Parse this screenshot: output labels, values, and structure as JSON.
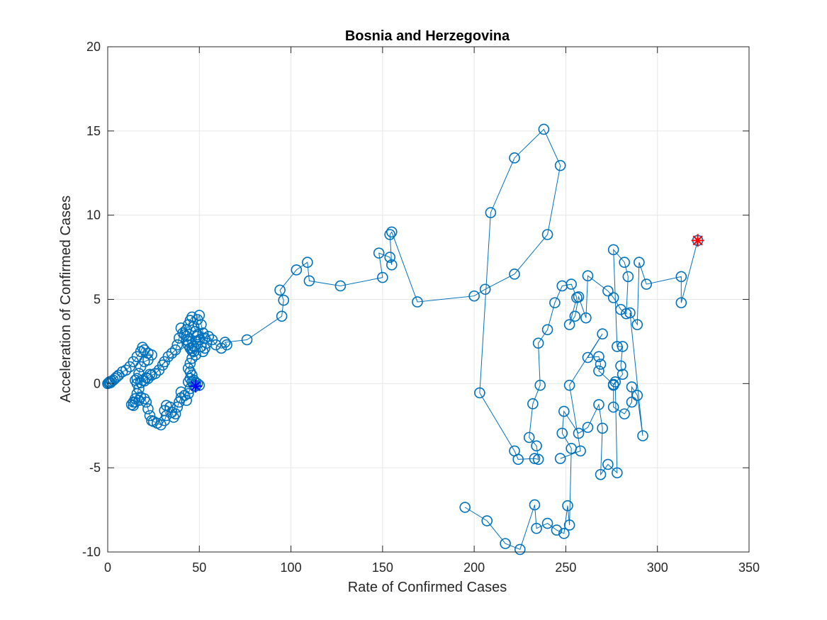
{
  "chart_data": {
    "type": "line",
    "title": "Bosnia and Herzegovina",
    "xlabel": "Rate of Confirmed Cases",
    "ylabel": "Acceleration of Confirmed Cases",
    "xlim": [
      0,
      350
    ],
    "ylim": [
      -10,
      20
    ],
    "xticks": [
      0,
      50,
      100,
      150,
      200,
      250,
      300,
      350
    ],
    "yticks": [
      -10,
      -5,
      0,
      5,
      10,
      15,
      20
    ],
    "grid": true,
    "colors": {
      "series": "#0072BD",
      "start_marker": "#0000FF",
      "end_marker": "#FF0000",
      "grid": "#E6E6E6",
      "axis": "#262626"
    },
    "series": [
      {
        "marker": "circle",
        "points": [
          [
            0,
            0
          ],
          [
            0.5,
            0.05
          ],
          [
            1,
            0.1
          ],
          [
            1.5,
            0.05
          ],
          [
            2,
            0.15
          ],
          [
            3,
            0.2
          ],
          [
            4,
            0.3
          ],
          [
            5,
            0.4
          ],
          [
            6,
            0.5
          ],
          [
            8,
            0.7
          ],
          [
            10,
            0.8
          ],
          [
            12,
            1.0
          ],
          [
            14,
            1.3
          ],
          [
            16,
            1.6
          ],
          [
            18,
            1.9
          ],
          [
            19,
            2.15
          ],
          [
            20,
            2.0
          ],
          [
            22,
            1.8
          ],
          [
            24,
            1.7
          ],
          [
            22,
            1.4
          ],
          [
            20,
            1.3
          ],
          [
            18,
            1.0
          ],
          [
            17,
            0.6
          ],
          [
            16,
            0.3
          ],
          [
            15,
            0.2
          ],
          [
            16,
            0.0
          ],
          [
            17,
            -0.3
          ],
          [
            16,
            -0.6
          ],
          [
            15,
            -0.9
          ],
          [
            14,
            -1.1
          ],
          [
            13,
            -1.25
          ],
          [
            14,
            -1.3
          ],
          [
            15,
            -1.1
          ],
          [
            17,
            -1.0
          ],
          [
            18,
            -0.8
          ],
          [
            20,
            -0.9
          ],
          [
            21,
            -1.1
          ],
          [
            22,
            -1.5
          ],
          [
            23,
            -1.9
          ],
          [
            24,
            -2.2
          ],
          [
            25,
            -2.25
          ],
          [
            27,
            -2.35
          ],
          [
            29,
            -2.45
          ],
          [
            31,
            -2.2
          ],
          [
            32,
            -1.9
          ],
          [
            31,
            -1.6
          ],
          [
            32,
            -1.3
          ],
          [
            34,
            -1.4
          ],
          [
            35,
            -1.7
          ],
          [
            36,
            -2.0
          ],
          [
            37,
            -1.8
          ],
          [
            38,
            -1.4
          ],
          [
            39,
            -1.1
          ],
          [
            40,
            -0.85
          ],
          [
            40,
            -0.5
          ],
          [
            42,
            -0.7
          ],
          [
            43,
            -1.0
          ],
          [
            44,
            -0.6
          ],
          [
            45,
            -0.3
          ],
          [
            44,
            0.1
          ],
          [
            45,
            0.3
          ],
          [
            46,
            0.1
          ],
          [
            47,
            -0.1
          ],
          [
            48,
            0.05
          ],
          [
            50,
            -0.1
          ],
          [
            49,
            0.0
          ],
          [
            48,
            -0.15
          ],
          [
            47,
            0.2
          ],
          [
            46,
            0.5
          ],
          [
            45,
            0.7
          ],
          [
            44,
            0.9
          ],
          [
            45,
            1.2
          ],
          [
            46,
            1.5
          ],
          [
            48,
            1.7
          ],
          [
            47,
            1.9
          ],
          [
            46,
            2.1
          ],
          [
            44,
            2.3
          ],
          [
            43,
            2.6
          ],
          [
            42,
            2.9
          ],
          [
            43,
            3.2
          ],
          [
            44,
            3.5
          ],
          [
            45,
            3.75
          ],
          [
            46,
            3.95
          ],
          [
            47,
            3.4
          ],
          [
            48,
            3.1
          ],
          [
            49,
            3.8
          ],
          [
            50,
            4.05
          ],
          [
            51,
            3.5
          ],
          [
            52,
            3.0
          ],
          [
            53,
            2.7
          ],
          [
            54,
            2.4
          ],
          [
            53,
            2.1
          ],
          [
            52,
            1.9
          ],
          [
            51,
            2.2
          ],
          [
            50,
            2.6
          ],
          [
            49,
            2.9
          ],
          [
            48,
            2.5
          ],
          [
            47,
            2.2
          ],
          [
            46,
            1.95
          ],
          [
            45,
            2.1
          ],
          [
            44,
            2.5
          ],
          [
            43,
            2.8
          ],
          [
            41,
            3.0
          ],
          [
            40,
            3.3
          ],
          [
            39,
            2.7
          ],
          [
            38,
            2.3
          ],
          [
            37,
            2.0
          ],
          [
            35,
            1.8
          ],
          [
            33,
            1.6
          ],
          [
            31,
            1.3
          ],
          [
            30,
            1.1
          ],
          [
            28,
            0.8
          ],
          [
            26,
            0.6
          ],
          [
            24,
            0.5
          ],
          [
            22,
            0.3
          ],
          [
            20,
            0.15
          ],
          [
            18,
            0.05
          ],
          [
            19,
            0.2
          ],
          [
            21,
            0.35
          ],
          [
            23,
            0.55
          ],
          [
            49,
            2.8
          ],
          [
            52,
            3.0
          ],
          [
            55,
            2.8
          ],
          [
            57,
            2.6
          ],
          [
            59,
            2.3
          ],
          [
            62,
            2.1
          ],
          [
            65,
            2.3
          ],
          [
            64,
            2.45
          ],
          [
            76,
            2.6
          ],
          [
            95,
            4.0
          ],
          [
            96,
            4.95
          ],
          [
            94,
            5.55
          ],
          [
            103,
            6.75
          ],
          [
            109,
            7.2
          ],
          [
            110,
            6.1
          ],
          [
            127,
            5.8
          ],
          [
            150,
            6.3
          ],
          [
            148,
            7.75
          ],
          [
            154,
            7.5
          ],
          [
            155,
            7.05
          ],
          [
            154,
            8.85
          ],
          [
            155,
            9.0
          ],
          [
            169,
            4.85
          ],
          [
            200,
            5.2
          ],
          [
            206,
            5.6
          ],
          [
            222,
            6.5
          ],
          [
            240,
            8.85
          ],
          [
            247,
            12.95
          ],
          [
            238,
            15.1
          ],
          [
            222,
            13.4
          ],
          [
            209,
            10.15
          ],
          [
            203,
            -0.55
          ],
          [
            222,
            -4.0
          ],
          [
            224,
            -4.5
          ],
          [
            233,
            -4.45
          ],
          [
            235,
            -4.5
          ],
          [
            234,
            -3.7
          ],
          [
            230,
            -3.2
          ],
          [
            232,
            -1.2
          ],
          [
            236,
            -0.1
          ],
          [
            235,
            2.4
          ],
          [
            240,
            3.2
          ],
          [
            244,
            4.8
          ],
          [
            248,
            5.8
          ],
          [
            253,
            5.9
          ],
          [
            256,
            5.1
          ],
          [
            252,
            3.5
          ],
          [
            255,
            4.0
          ],
          [
            257,
            5.15
          ],
          [
            261,
            3.9
          ],
          [
            262,
            6.4
          ],
          [
            273,
            5.5
          ],
          [
            276,
            5.1
          ],
          [
            280,
            4.4
          ],
          [
            283,
            4.15
          ],
          [
            284,
            6.35
          ],
          [
            282,
            7.2
          ],
          [
            276,
            7.95
          ],
          [
            278,
            2.2
          ],
          [
            281,
            2.2
          ],
          [
            280,
            1.05
          ],
          [
            281,
            0.55
          ],
          [
            276,
            -0.1
          ],
          [
            276,
            -1.4
          ],
          [
            282,
            -1.8
          ],
          [
            286,
            -1.1
          ],
          [
            286,
            -0.2
          ],
          [
            289,
            -0.7
          ],
          [
            292,
            -3.1
          ],
          [
            285,
            4.2
          ],
          [
            289,
            3.5
          ],
          [
            290,
            7.2
          ],
          [
            294,
            5.9
          ],
          [
            313,
            6.35
          ],
          [
            313,
            4.8
          ],
          [
            322,
            8.5
          ]
        ]
      },
      {
        "marker": "circle",
        "points": [
          [
            195,
            -7.35
          ],
          [
            207,
            -8.15
          ],
          [
            217,
            -9.5
          ],
          [
            225,
            -9.85
          ],
          [
            233,
            -7.2
          ],
          [
            234,
            -8.6
          ],
          [
            240,
            -8.3
          ],
          [
            245,
            -8.7
          ],
          [
            249,
            -8.9
          ],
          [
            251,
            -7.25
          ],
          [
            252,
            -8.4
          ],
          [
            253,
            -3.85
          ],
          [
            248,
            -2.95
          ],
          [
            249,
            -1.65
          ],
          [
            257,
            -2.95
          ],
          [
            262,
            -2.6
          ],
          [
            268,
            -1.25
          ],
          [
            270,
            -2.65
          ],
          [
            269,
            -5.4
          ],
          [
            273,
            -4.8
          ],
          [
            278,
            -5.3
          ],
          [
            277,
            0.1
          ],
          [
            276,
            -0.05
          ],
          [
            268,
            0.75
          ],
          [
            269,
            1.15
          ],
          [
            268,
            1.6
          ],
          [
            262,
            1.55
          ],
          [
            270,
            2.95
          ],
          [
            252,
            -0.1
          ],
          [
            258,
            -4.0
          ],
          [
            247,
            -4.45
          ]
        ]
      }
    ],
    "start_point": [
      48,
      -0.15
    ],
    "end_point": [
      322,
      8.5
    ]
  }
}
